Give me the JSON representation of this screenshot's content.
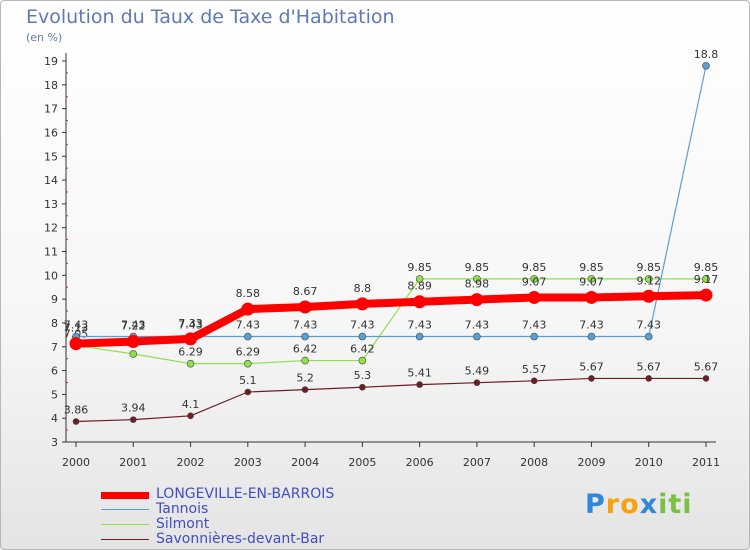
{
  "chart_data": {
    "type": "line",
    "title": "Evolution du Taux de Taxe d'Habitation",
    "subtitle": "(en %)",
    "xlabel": "",
    "ylabel": "",
    "ylim": [
      3,
      19
    ],
    "yticks": [
      "3",
      "4",
      "5",
      "6",
      "7",
      "8",
      "9",
      "10",
      "11",
      "12",
      "13",
      "14",
      "15",
      "16",
      "17",
      "18",
      "19"
    ],
    "categories": [
      "2000",
      "2001",
      "2002",
      "2003",
      "2004",
      "2005",
      "2006",
      "2007",
      "2008",
      "2009",
      "2010",
      "2011"
    ],
    "series": [
      {
        "name": "Savonnières-devant-Bar",
        "color": "#6e1e22",
        "width": 1.2,
        "marker": 3,
        "values": [
          3.86,
          3.94,
          4.1,
          5.1,
          5.2,
          5.3,
          5.41,
          5.49,
          5.57,
          5.67,
          5.67,
          5.67
        ],
        "labels": [
          "3.86",
          "3.94",
          "4.1",
          "5.1",
          "5.2",
          "5.3",
          "5.41",
          "5.49",
          "5.57",
          "5.67",
          "5.67",
          "5.67"
        ]
      },
      {
        "name": "Silmont",
        "color": "#8fe04a",
        "width": 1.2,
        "marker": 3.5,
        "values": [
          7.05,
          6.7,
          6.29,
          6.29,
          6.42,
          6.42,
          9.85,
          9.85,
          9.85,
          9.85,
          9.85,
          9.85
        ],
        "labels": [
          "7.05",
          "6.7",
          "6.29",
          "6.29",
          "6.42",
          "6.42",
          "9.85",
          "9.85",
          "9.85",
          "9.85",
          "9.85",
          "9.85"
        ]
      },
      {
        "name": "Tannois",
        "color": "#5a9fd4",
        "width": 1.2,
        "marker": 3.5,
        "values": [
          7.43,
          7.43,
          7.43,
          7.43,
          7.43,
          7.43,
          7.43,
          7.43,
          7.43,
          7.43,
          7.43,
          18.8
        ],
        "labels": [
          "7.43",
          "7.43",
          "7.43",
          "7.43",
          "7.43",
          "7.43",
          "7.43",
          "7.43",
          "7.43",
          "7.43",
          "7.43",
          "18.8"
        ]
      },
      {
        "name": "LONGEVILLE-EN-BARROIS",
        "color": "#ff0000",
        "width": 8,
        "marker": 6.5,
        "values": [
          7.13,
          7.22,
          7.33,
          8.58,
          8.67,
          8.8,
          8.89,
          8.98,
          9.07,
          9.07,
          9.12,
          9.17
        ],
        "labels": [
          "7.13",
          "7.22",
          "7.33",
          "8.58",
          "8.67",
          "8.8",
          "8.89",
          "8.98",
          "9.07",
          "9.07",
          "9.12",
          "9.17"
        ]
      }
    ],
    "legend": {
      "position": "bottom-left",
      "items": [
        {
          "name": "LONGEVILLE-EN-BARROIS",
          "color": "#ff0000",
          "thickness": 7
        },
        {
          "name": "Tannois",
          "color": "#5a9fd4",
          "thickness": 1.5
        },
        {
          "name": "Silmont",
          "color": "#8fe04a",
          "thickness": 1.5
        },
        {
          "name": "Savonnières-devant-Bar",
          "color": "#6e1e22",
          "thickness": 1.5
        }
      ]
    },
    "grid": false
  },
  "brand": {
    "letters": [
      {
        "ch": "P",
        "color": "#2e87d8"
      },
      {
        "ch": "r",
        "color": "#f5a20b"
      },
      {
        "ch": "o",
        "color": "#f5a20b"
      },
      {
        "ch": "x",
        "color": "#2e87d8"
      },
      {
        "ch": "i",
        "color": "#7bc043"
      },
      {
        "ch": "t",
        "color": "#7bc043"
      },
      {
        "ch": "i",
        "color": "#7bc043"
      }
    ]
  }
}
